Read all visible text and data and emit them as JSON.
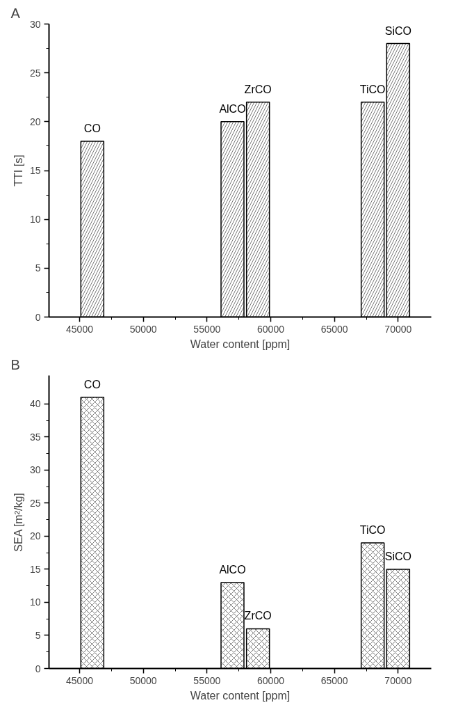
{
  "chart_data": [
    {
      "type": "bar",
      "title": "A",
      "xlabel": "Water content [ppm]",
      "ylabel": "TTI [s]",
      "x": [
        46000,
        57000,
        59000,
        68000,
        70000
      ],
      "values": [
        18,
        20,
        22,
        22,
        28
      ],
      "color": "#ffffff",
      "xlim": [
        42600,
        72600
      ],
      "xticks": [
        45000,
        50000,
        55000,
        60000,
        65000,
        70000
      ],
      "ylim": [
        0,
        30
      ],
      "yticks": [
        0,
        5,
        10,
        15,
        20,
        25,
        30
      ],
      "grid": false,
      "annotations": [
        {
          "text": "CO",
          "x": 46000,
          "y": 18
        },
        {
          "text": "AlCO",
          "x": 57000,
          "y": 20
        },
        {
          "text": "ZrCO",
          "x": 59000,
          "y": 22
        },
        {
          "text": "TiCO",
          "x": 68000,
          "y": 22
        },
        {
          "text": "SiCO",
          "x": 70000,
          "y": 28
        }
      ]
    },
    {
      "type": "bar",
      "title": "B",
      "xlabel": "Water content [ppm]",
      "ylabel": "SEA [m²/kg]",
      "x": [
        46000,
        57000,
        59000,
        68000,
        70000
      ],
      "values": [
        41,
        13,
        6,
        19,
        15
      ],
      "color": "#ffffff",
      "xlim": [
        42600,
        72600
      ],
      "xticks": [
        45000,
        50000,
        55000,
        60000,
        65000,
        70000
      ],
      "ylim": [
        0,
        44.3
      ],
      "yticks": [
        0,
        5,
        10,
        15,
        20,
        25,
        30,
        35,
        40
      ],
      "grid": false,
      "annotations": [
        {
          "text": "CO",
          "x": 46000,
          "y": 41
        },
        {
          "text": "AlCO",
          "x": 57000,
          "y": 13
        },
        {
          "text": "ZrCO",
          "x": 59000,
          "y": 6
        },
        {
          "text": "TiCO",
          "x": 68000,
          "y": 19
        },
        {
          "text": "SiCO",
          "x": 70000,
          "y": 15
        }
      ]
    }
  ]
}
